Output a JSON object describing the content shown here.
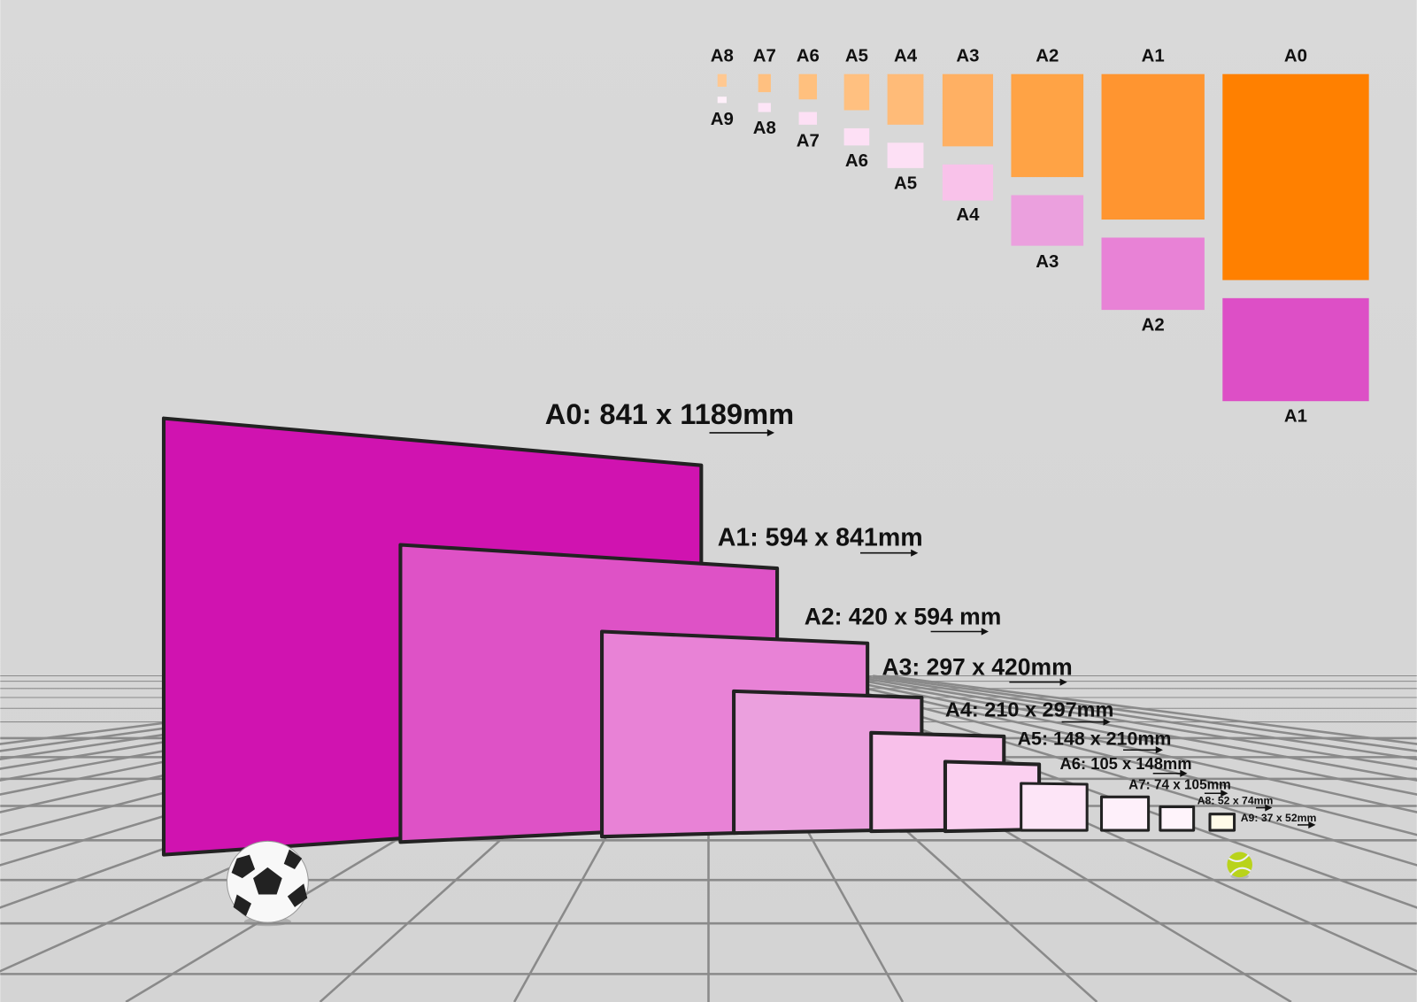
{
  "columns": [
    {
      "top": "A8",
      "bottom": "A9"
    },
    {
      "top": "A7",
      "bottom": "A8"
    },
    {
      "top": "A6",
      "bottom": "A7"
    },
    {
      "top": "A5",
      "bottom": "A6"
    },
    {
      "top": "A4",
      "bottom": "A5"
    },
    {
      "top": "A3",
      "bottom": "A4"
    },
    {
      "top": "A2",
      "bottom": "A3"
    },
    {
      "top": "A1",
      "bottom": "A2"
    },
    {
      "top": "A0",
      "bottom": "A1"
    }
  ],
  "panels": [
    {
      "label": "A0: 841 x 1189mm"
    },
    {
      "label": "A1: 594 x 841mm"
    },
    {
      "label": "A2: 420 x 594 mm"
    },
    {
      "label": "A3: 297 x 420mm"
    },
    {
      "label": "A4: 210 x 297mm"
    },
    {
      "label": "A5: 148 x 210mm"
    },
    {
      "label": "A6: 105 x 148mm"
    },
    {
      "label": "A7: 74 x 105mm"
    },
    {
      "label": "A8: 52 x 74mm"
    },
    {
      "label": "A9: 37 x 52mm"
    }
  ]
}
